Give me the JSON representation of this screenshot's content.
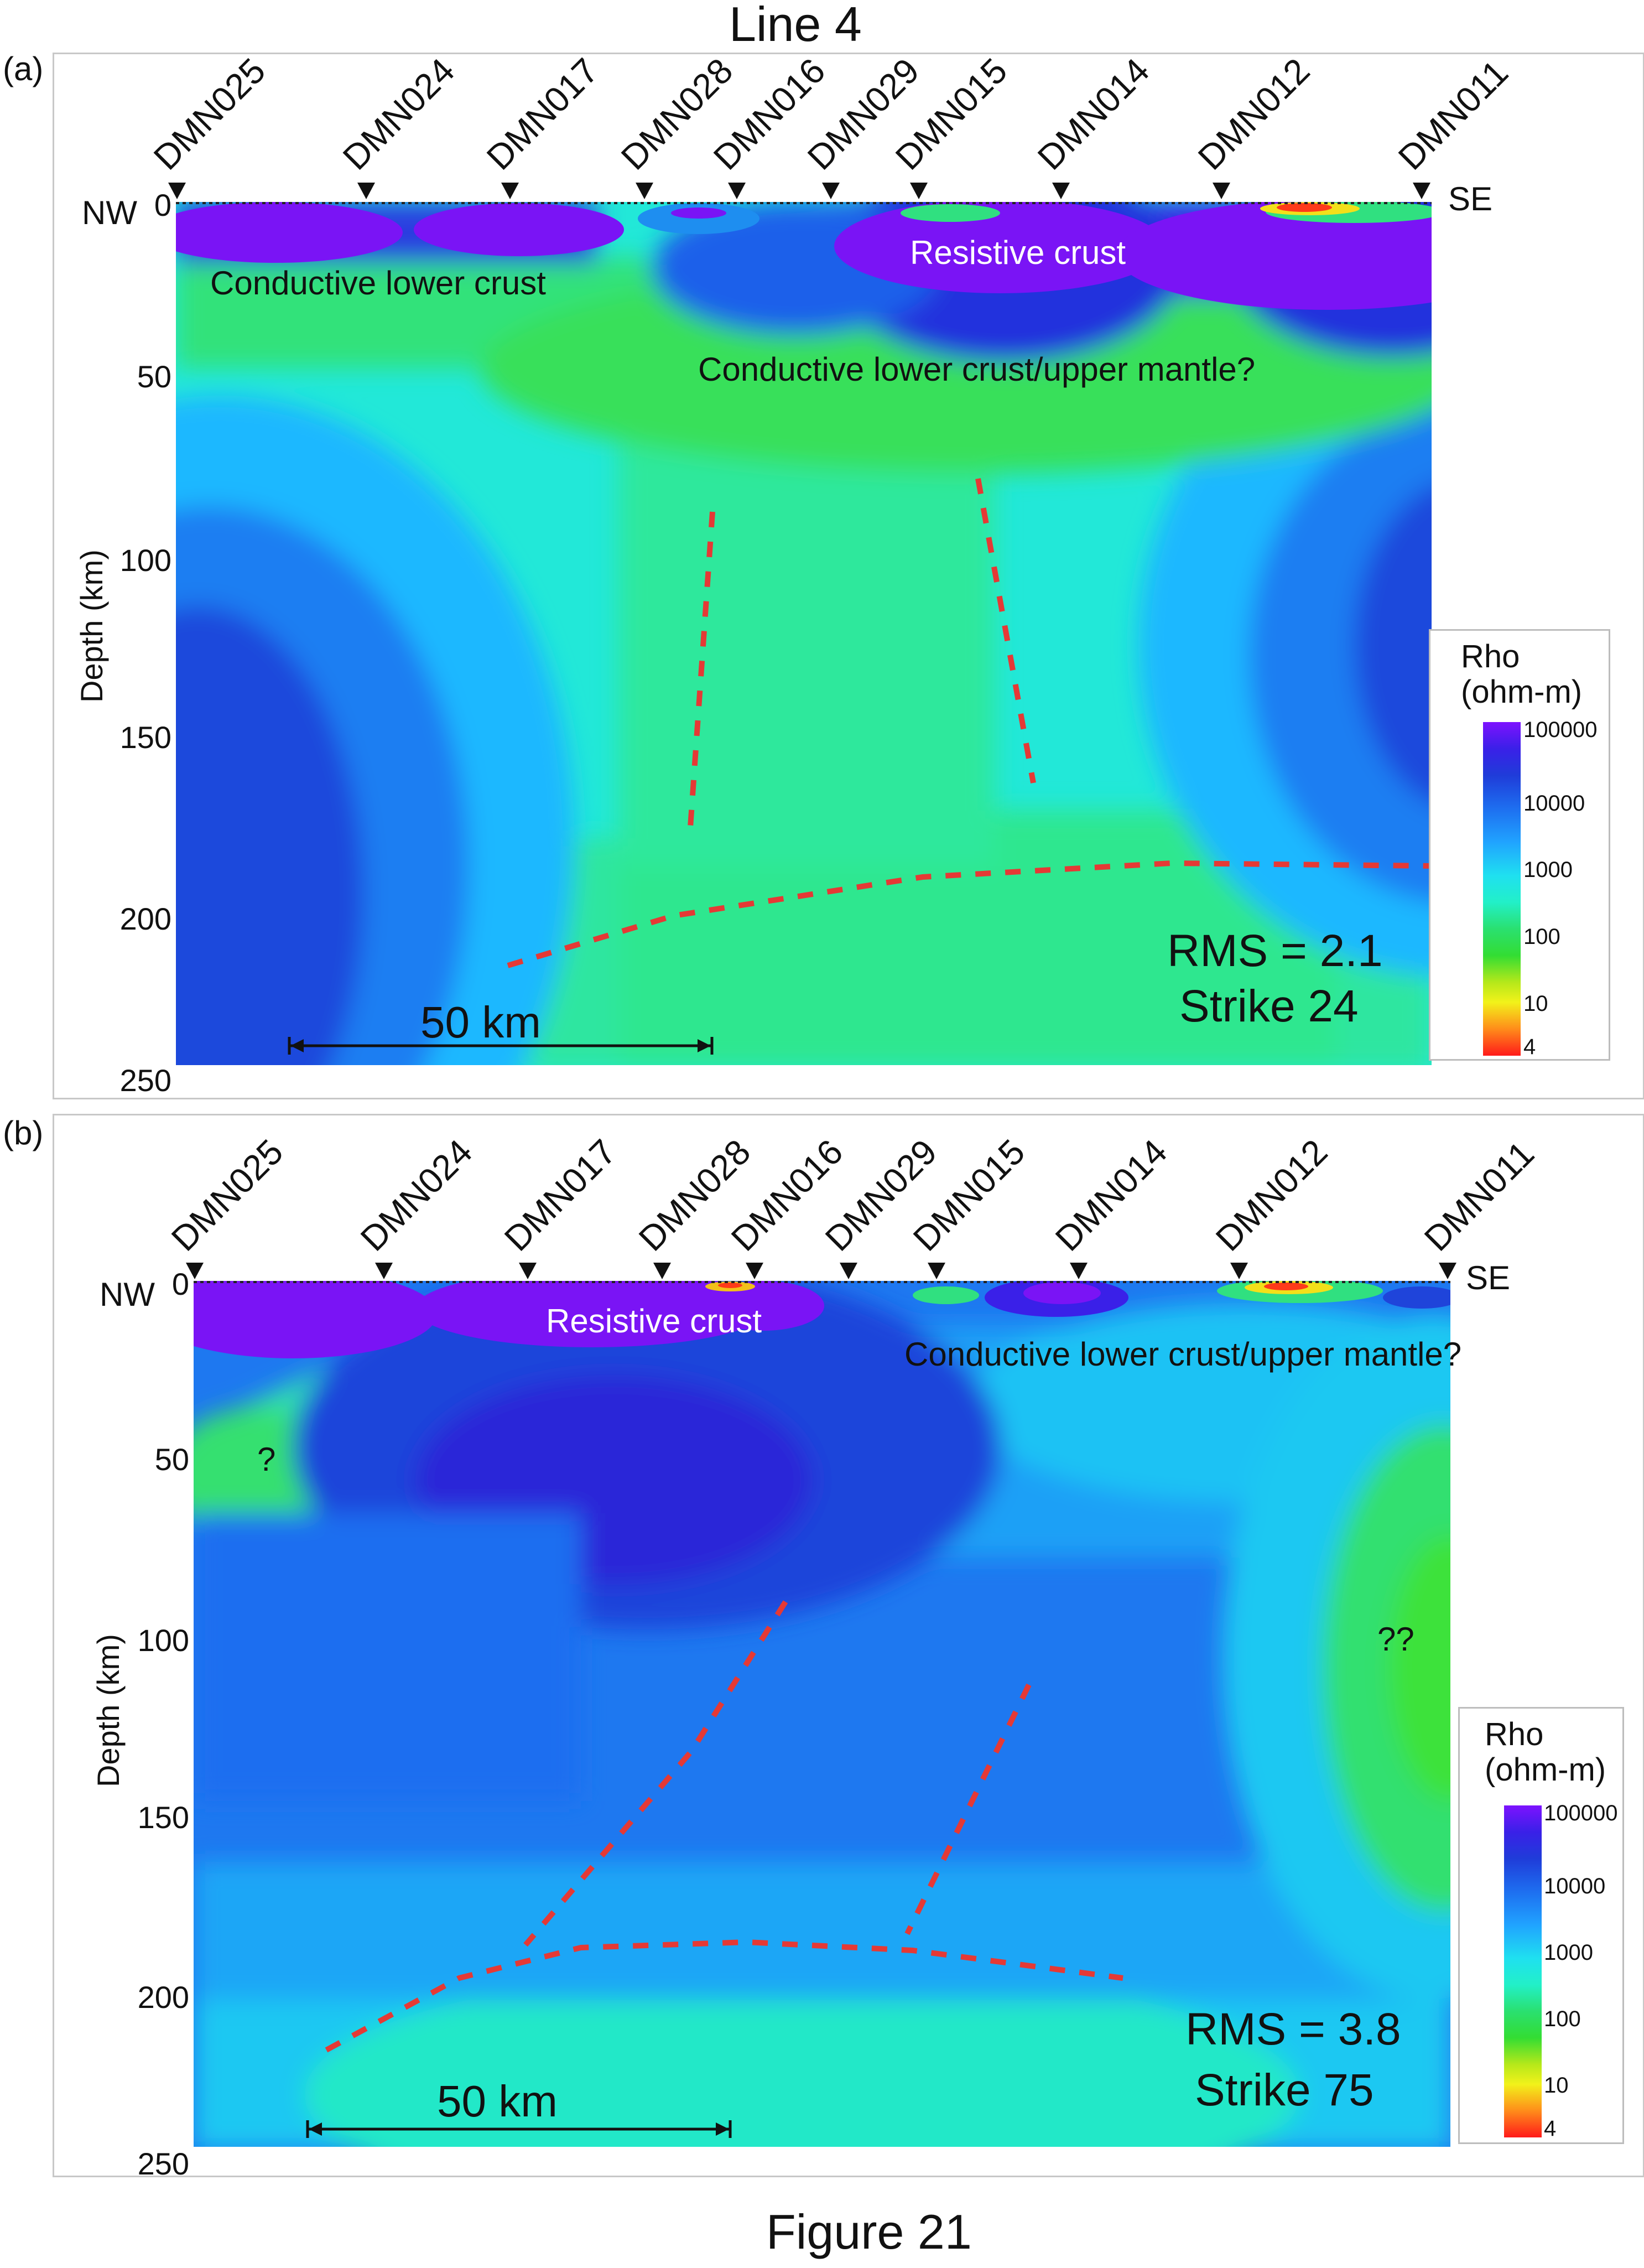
{
  "title": "Line 4",
  "figure_caption": "Figure 21",
  "colors": {
    "purple": "#7d12ff",
    "dark_blue": "#1f3cd9",
    "blue": "#1e6ff0",
    "light_blue": "#20a3ff",
    "cyan": "#1fe0f0",
    "aqua": "#22f0c8",
    "green": "#2ae070",
    "bright_green": "#33dd33",
    "yellow": "#f2f21a",
    "orange": "#ff8c1a",
    "red": "#ff1a1a",
    "dashed_line": "#e53935"
  },
  "panel_a": {
    "label": "(a)",
    "nw": "NW",
    "se": "SE",
    "stations": [
      "DMN025",
      "DMN024",
      "DMN017",
      "DMN028",
      "DMN016",
      "DMN029",
      "DMN015",
      "DMN014",
      "DMN012",
      "DMN011"
    ],
    "y_ticks": [
      "0",
      "50",
      "100",
      "150",
      "200",
      "250"
    ],
    "y_label": "Depth (km)",
    "annotations": {
      "conductive_lower_crust": "Conductive lower crust",
      "resistive_crust": "Resistive crust",
      "conductive_lower_crust_mantle": "Conductive lower crust/upper mantle?"
    },
    "rms": "RMS = 2.1",
    "strike": "Strike 24",
    "scale_bar": "50 km",
    "legend_title_1": "Rho",
    "legend_title_2": "(ohm-m)",
    "legend_ticks": [
      "100000",
      "10000",
      "1000",
      "100",
      "10",
      "4"
    ]
  },
  "panel_b": {
    "label": "(b)",
    "nw": "NW",
    "se": "SE",
    "stations": [
      "DMN025",
      "DMN024",
      "DMN017",
      "DMN028",
      "DMN016",
      "DMN029",
      "DMN015",
      "DMN014",
      "DMN012",
      "DMN011"
    ],
    "y_ticks": [
      "0",
      "50",
      "100",
      "150",
      "200",
      "250"
    ],
    "y_label": "Depth (km)",
    "annotations": {
      "resistive_crust": "Resistive crust",
      "conductive_lower_crust_mantle": "Conductive lower crust/upper mantle?",
      "q1": "?",
      "q2": "??"
    },
    "rms": "RMS = 3.8",
    "strike": "Strike 75",
    "scale_bar": "50 km",
    "legend_title_1": "Rho",
    "legend_title_2": "(ohm-m)",
    "legend_ticks": [
      "100000",
      "10000",
      "1000",
      "100",
      "10",
      "4"
    ]
  }
}
